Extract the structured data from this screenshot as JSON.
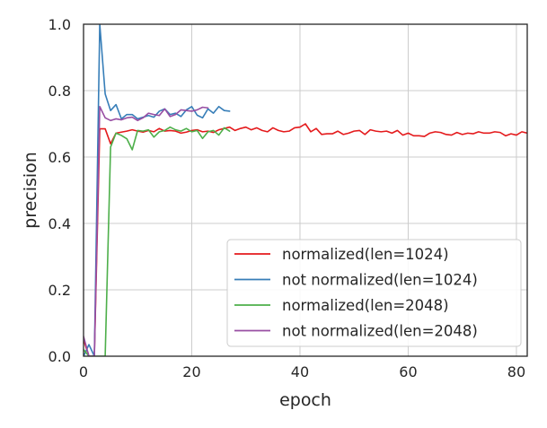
{
  "chart_data": {
    "type": "line",
    "title": "",
    "xlabel": "epoch",
    "ylabel": "precision",
    "xlim": [
      0,
      82
    ],
    "ylim": [
      0,
      1.0
    ],
    "xticks": [
      0,
      20,
      40,
      60,
      80
    ],
    "xtick_labels": [
      "0",
      "20",
      "40",
      "60",
      "80"
    ],
    "yticks": [
      0,
      0.2,
      0.4,
      0.6,
      0.8,
      1.0
    ],
    "ytick_labels": [
      "0.0",
      "0.2",
      "0.4",
      "0.6",
      "0.8",
      "1.0"
    ],
    "grid": true,
    "legend_position": "lower-right",
    "series": [
      {
        "name": "normalized(len=1024)",
        "color": "#e41a1c",
        "x": [
          0,
          1,
          2,
          3,
          4,
          5,
          6,
          7,
          8,
          9,
          10,
          11,
          12,
          13,
          14,
          15,
          16,
          17,
          18,
          19,
          20,
          21,
          22,
          23,
          24,
          25,
          26,
          27,
          28,
          29,
          30,
          31,
          32,
          33,
          34,
          35,
          36,
          37,
          38,
          39,
          40,
          41,
          42,
          43,
          44,
          45,
          46,
          47,
          48,
          49,
          50,
          51,
          52,
          53,
          54,
          55,
          56,
          57,
          58,
          59,
          60,
          61,
          62,
          63,
          64,
          65,
          66,
          67,
          68,
          69,
          70,
          71,
          72,
          73,
          74,
          75,
          76,
          77,
          78,
          79,
          80,
          81,
          82
        ],
        "values": [
          0.05,
          0.0,
          0.0,
          0.685,
          0.685,
          0.64,
          0.672,
          0.675,
          0.678,
          0.682,
          0.678,
          0.675,
          0.68,
          0.676,
          0.686,
          0.678,
          0.68,
          0.678,
          0.672,
          0.675,
          0.68,
          0.682,
          0.676,
          0.678,
          0.674,
          0.682,
          0.686,
          0.69,
          0.68,
          0.686,
          0.69,
          0.682,
          0.688,
          0.68,
          0.676,
          0.688,
          0.68,
          0.676,
          0.678,
          0.688,
          0.69,
          0.7,
          0.676,
          0.686,
          0.668,
          0.67,
          0.67,
          0.678,
          0.668,
          0.672,
          0.678,
          0.68,
          0.668,
          0.682,
          0.678,
          0.676,
          0.678,
          0.672,
          0.68,
          0.666,
          0.672,
          0.664,
          0.664,
          0.662,
          0.672,
          0.676,
          0.674,
          0.668,
          0.666,
          0.674,
          0.668,
          0.672,
          0.67,
          0.676,
          0.672,
          0.672,
          0.676,
          0.674,
          0.664,
          0.67,
          0.666,
          0.676,
          0.672
        ]
      },
      {
        "name": "not normalized(len=1024)",
        "color": "#377eb8",
        "x": [
          0,
          1,
          2,
          3,
          4,
          5,
          6,
          7,
          8,
          9,
          10,
          11,
          12,
          13,
          14,
          15,
          16,
          17,
          18,
          19,
          20,
          21,
          22,
          23,
          24,
          25,
          26,
          27
        ],
        "values": [
          0.0,
          0.035,
          0.0,
          1.0,
          0.79,
          0.74,
          0.758,
          0.715,
          0.728,
          0.728,
          0.715,
          0.72,
          0.725,
          0.72,
          0.738,
          0.745,
          0.728,
          0.732,
          0.722,
          0.742,
          0.752,
          0.726,
          0.718,
          0.745,
          0.732,
          0.752,
          0.74,
          0.738
        ]
      },
      {
        "name": "normalized(len=2048)",
        "color": "#4daf4a",
        "x": [
          0,
          1,
          2,
          3,
          4,
          5,
          6,
          7,
          8,
          9,
          10,
          11,
          12,
          13,
          14,
          15,
          16,
          17,
          18,
          19,
          20,
          21,
          22,
          23,
          24,
          25,
          26,
          27
        ],
        "values": [
          0.02,
          0.0,
          0.0,
          0.0,
          0.0,
          0.63,
          0.672,
          0.665,
          0.655,
          0.622,
          0.68,
          0.678,
          0.682,
          0.66,
          0.676,
          0.68,
          0.69,
          0.682,
          0.678,
          0.686,
          0.676,
          0.68,
          0.656,
          0.676,
          0.68,
          0.666,
          0.688,
          0.678
        ]
      },
      {
        "name": "not normalized(len=2048)",
        "color": "#984ea3",
        "x": [
          0,
          1,
          2,
          3,
          4,
          5,
          6,
          7,
          8,
          9,
          10,
          11,
          12,
          13,
          14,
          15,
          16,
          17,
          18,
          19,
          20,
          21,
          22,
          23
        ],
        "values": [
          0.06,
          0.0,
          0.0,
          0.752,
          0.718,
          0.71,
          0.715,
          0.712,
          0.718,
          0.72,
          0.71,
          0.718,
          0.732,
          0.728,
          0.725,
          0.745,
          0.722,
          0.728,
          0.742,
          0.74,
          0.738,
          0.742,
          0.75,
          0.748
        ]
      }
    ]
  }
}
